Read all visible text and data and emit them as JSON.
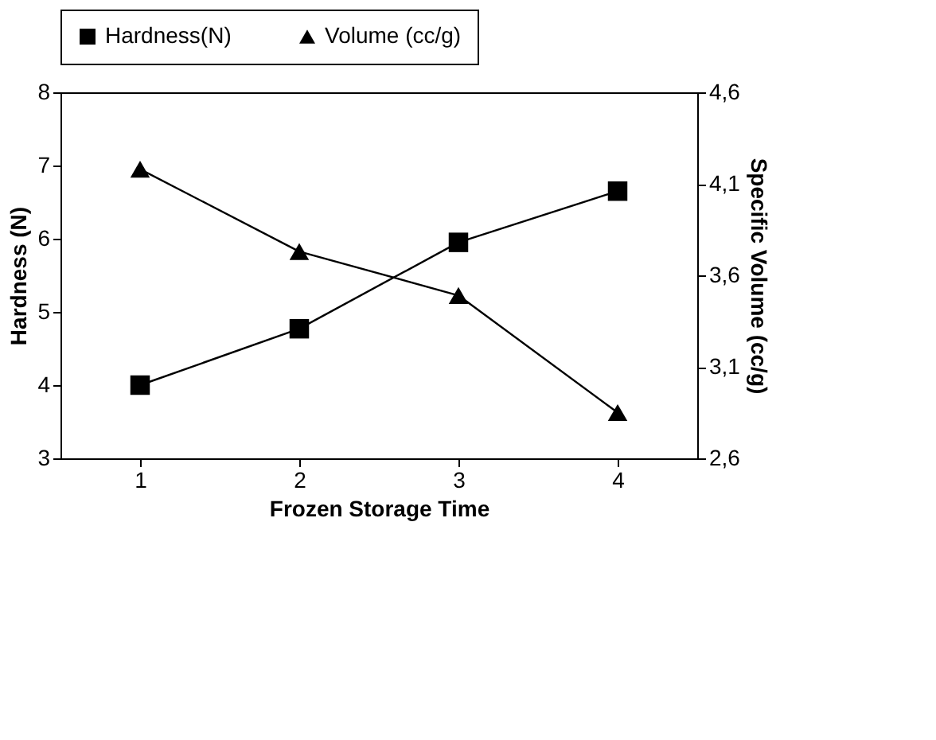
{
  "chart_data": {
    "type": "line",
    "xlabel": "Frozen Storage Time",
    "ylabel": "Hardness (N)",
    "y2label": "Specific Volume (cc/g)",
    "categories": [
      "1",
      "2",
      "3",
      "4"
    ],
    "series": [
      {
        "name": "Hardness(N)",
        "color": "#000000",
        "marker": "square",
        "values": [
          4.0,
          4.77,
          5.95,
          6.65
        ]
      },
      {
        "name": "Volume (cc/g)",
        "color": "#000000",
        "marker": "triangle",
        "axis": "y2",
        "values": [
          4.18,
          3.73,
          3.49,
          2.85
        ]
      }
    ],
    "ylim": [
      3,
      8
    ],
    "yticks": [
      3,
      4,
      5,
      6,
      7,
      8
    ],
    "y2lim": [
      2.6,
      4.6
    ],
    "y2ticks": [
      {
        "value": 2.6,
        "label": "2,6"
      },
      {
        "value": 3.1,
        "label": "3,1"
      },
      {
        "value": 3.6,
        "label": "3,6"
      },
      {
        "value": 4.1,
        "label": "4,1"
      },
      {
        "value": 4.6,
        "label": "4,6"
      }
    ],
    "legend": "top",
    "grid": false
  }
}
